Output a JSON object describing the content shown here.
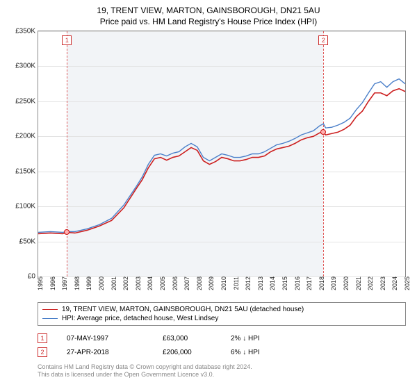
{
  "title": "19, TRENT VIEW, MARTON, GAINSBOROUGH, DN21 5AU",
  "subtitle": "Price paid vs. HM Land Registry's House Price Index (HPI)",
  "chart": {
    "type": "line",
    "background_color": "#ffffff",
    "plot_shade_color": "#f2f4f7",
    "grid_color": "#e3e3e3",
    "border_color": "#888888",
    "title_fontsize": 12,
    "axis": {
      "x": {
        "min": 1995,
        "max": 2025,
        "ticks": [
          1995,
          1996,
          1997,
          1998,
          1999,
          2000,
          2001,
          2002,
          2003,
          2004,
          2005,
          2006,
          2007,
          2008,
          2009,
          2010,
          2011,
          2012,
          2013,
          2014,
          2015,
          2016,
          2017,
          2018,
          2019,
          2020,
          2021,
          2022,
          2023,
          2024,
          2025
        ],
        "tick_fontsize": 9,
        "rotation_deg": -90
      },
      "y": {
        "min": 0,
        "max": 350000,
        "ticks": [
          0,
          50000,
          100000,
          150000,
          200000,
          250000,
          300000,
          350000
        ],
        "tick_labels": [
          "£0",
          "£50K",
          "£100K",
          "£150K",
          "£200K",
          "£250K",
          "£300K",
          "£350K"
        ],
        "tick_fontsize": 10
      }
    },
    "shaded_x_range": [
      1997.35,
      2018.32
    ],
    "marker_lines": [
      {
        "x": 1997.35,
        "label": "1"
      },
      {
        "x": 2018.32,
        "label": "2"
      }
    ],
    "series": [
      {
        "id": "price_paid",
        "label": "19, TRENT VIEW, MARTON, GAINSBOROUGH, DN21 5AU (detached house)",
        "color": "#cc1f1f",
        "line_width": 1.6,
        "points": [
          [
            1995,
            61000
          ],
          [
            1996,
            62000
          ],
          [
            1997,
            61000
          ],
          [
            1997.35,
            63000
          ],
          [
            1998,
            62000
          ],
          [
            1999,
            66000
          ],
          [
            2000,
            72000
          ],
          [
            2001,
            80000
          ],
          [
            2002,
            98000
          ],
          [
            2003,
            125000
          ],
          [
            2003.5,
            138000
          ],
          [
            2004,
            155000
          ],
          [
            2004.5,
            168000
          ],
          [
            2005,
            170000
          ],
          [
            2005.5,
            166000
          ],
          [
            2006,
            170000
          ],
          [
            2006.5,
            172000
          ],
          [
            2007,
            178000
          ],
          [
            2007.5,
            184000
          ],
          [
            2008,
            180000
          ],
          [
            2008.5,
            165000
          ],
          [
            2009,
            160000
          ],
          [
            2009.5,
            164000
          ],
          [
            2010,
            170000
          ],
          [
            2010.5,
            168000
          ],
          [
            2011,
            165000
          ],
          [
            2011.5,
            165000
          ],
          [
            2012,
            167000
          ],
          [
            2012.5,
            170000
          ],
          [
            2013,
            170000
          ],
          [
            2013.5,
            172000
          ],
          [
            2014,
            178000
          ],
          [
            2014.5,
            182000
          ],
          [
            2015,
            184000
          ],
          [
            2015.5,
            186000
          ],
          [
            2016,
            190000
          ],
          [
            2016.5,
            195000
          ],
          [
            2017,
            198000
          ],
          [
            2017.5,
            200000
          ],
          [
            2018,
            205000
          ],
          [
            2018.32,
            206000
          ],
          [
            2018.5,
            202000
          ],
          [
            2019,
            204000
          ],
          [
            2019.5,
            206000
          ],
          [
            2020,
            210000
          ],
          [
            2020.5,
            216000
          ],
          [
            2021,
            228000
          ],
          [
            2021.5,
            236000
          ],
          [
            2022,
            250000
          ],
          [
            2022.5,
            262000
          ],
          [
            2023,
            262000
          ],
          [
            2023.5,
            258000
          ],
          [
            2024,
            265000
          ],
          [
            2024.5,
            268000
          ],
          [
            2025,
            264000
          ]
        ]
      },
      {
        "id": "hpi",
        "label": "HPI: Average price, detached house, West Lindsey",
        "color": "#4a7fc9",
        "line_width": 1.4,
        "points": [
          [
            1995,
            63000
          ],
          [
            1996,
            64000
          ],
          [
            1997,
            63000
          ],
          [
            1997.35,
            64000
          ],
          [
            1998,
            64000
          ],
          [
            1999,
            68000
          ],
          [
            2000,
            74000
          ],
          [
            2001,
            83000
          ],
          [
            2002,
            102000
          ],
          [
            2003,
            128000
          ],
          [
            2003.5,
            142000
          ],
          [
            2004,
            160000
          ],
          [
            2004.5,
            173000
          ],
          [
            2005,
            175000
          ],
          [
            2005.5,
            172000
          ],
          [
            2006,
            176000
          ],
          [
            2006.5,
            178000
          ],
          [
            2007,
            185000
          ],
          [
            2007.5,
            190000
          ],
          [
            2008,
            185000
          ],
          [
            2008.5,
            170000
          ],
          [
            2009,
            165000
          ],
          [
            2009.5,
            170000
          ],
          [
            2010,
            175000
          ],
          [
            2010.5,
            173000
          ],
          [
            2011,
            170000
          ],
          [
            2011.5,
            170000
          ],
          [
            2012,
            172000
          ],
          [
            2012.5,
            175000
          ],
          [
            2013,
            175000
          ],
          [
            2013.5,
            178000
          ],
          [
            2014,
            183000
          ],
          [
            2014.5,
            188000
          ],
          [
            2015,
            190000
          ],
          [
            2015.5,
            193000
          ],
          [
            2016,
            197000
          ],
          [
            2016.5,
            202000
          ],
          [
            2017,
            205000
          ],
          [
            2017.5,
            208000
          ],
          [
            2018,
            215000
          ],
          [
            2018.32,
            218000
          ],
          [
            2018.5,
            212000
          ],
          [
            2019,
            213000
          ],
          [
            2019.5,
            216000
          ],
          [
            2020,
            220000
          ],
          [
            2020.5,
            226000
          ],
          [
            2021,
            238000
          ],
          [
            2021.5,
            248000
          ],
          [
            2022,
            262000
          ],
          [
            2022.5,
            275000
          ],
          [
            2023,
            278000
          ],
          [
            2023.5,
            270000
          ],
          [
            2024,
            278000
          ],
          [
            2024.5,
            282000
          ],
          [
            2025,
            275000
          ]
        ]
      }
    ],
    "marker_points": [
      {
        "x": 1997.35,
        "y": 63000
      },
      {
        "x": 2018.32,
        "y": 206000
      }
    ]
  },
  "legend": {
    "border_color": "#888888",
    "fontsize": 10
  },
  "transactions": [
    {
      "index": "1",
      "date": "07-MAY-1997",
      "price": "£63,000",
      "diff": "2% ↓ HPI"
    },
    {
      "index": "2",
      "date": "27-APR-2018",
      "price": "£206,000",
      "diff": "6% ↓ HPI"
    }
  ],
  "footnote_line1": "Contains HM Land Registry data © Crown copyright and database right 2024.",
  "footnote_line2": "This data is licensed under the Open Government Licence v3.0."
}
